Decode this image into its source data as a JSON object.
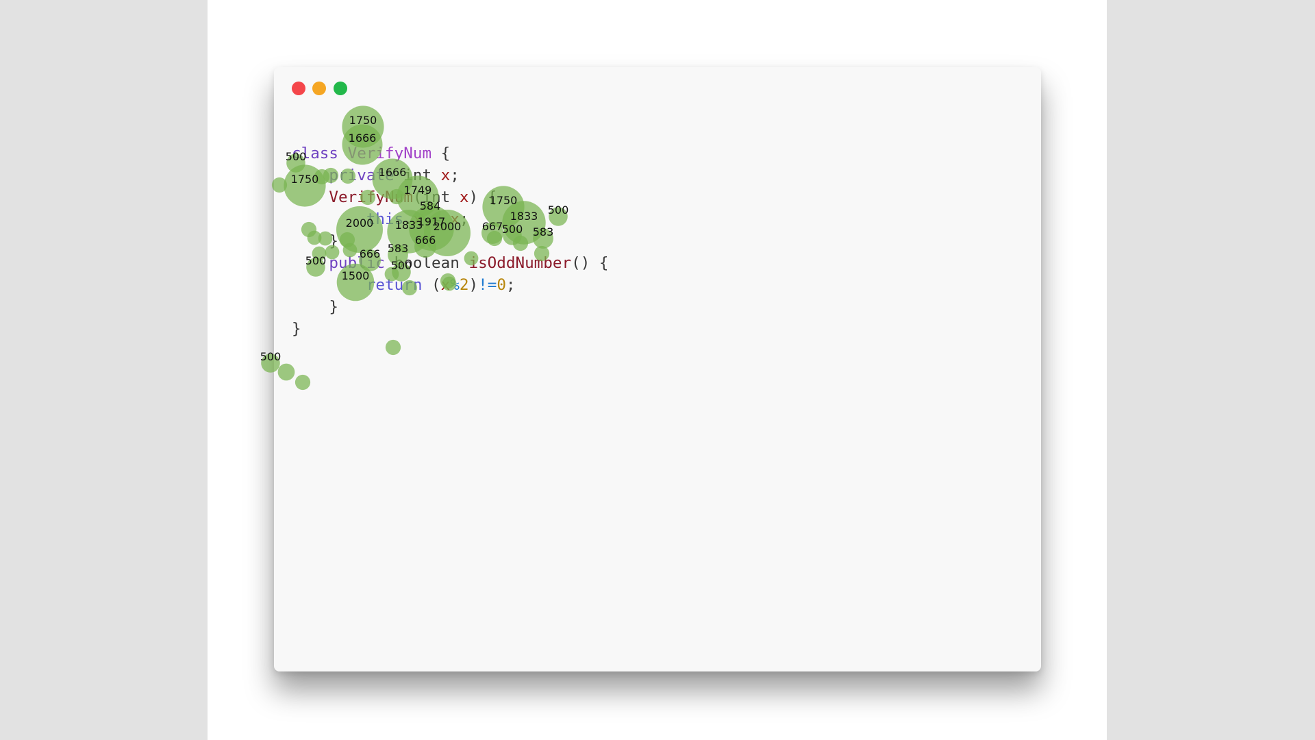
{
  "code": {
    "lines": [
      [
        {
          "t": "class ",
          "c": "kw"
        },
        {
          "t": "VerifyNum",
          "c": "cls"
        },
        {
          "t": " {",
          "c": "plain"
        }
      ],
      [
        {
          "t": "    ",
          "c": "plain"
        },
        {
          "t": "private ",
          "c": "kw"
        },
        {
          "t": "int ",
          "c": "plain"
        },
        {
          "t": "x",
          "c": "var"
        },
        {
          "t": ";",
          "c": "plain"
        }
      ],
      [
        {
          "t": "    ",
          "c": "plain"
        },
        {
          "t": "VerifyNum",
          "c": "fn"
        },
        {
          "t": "(int ",
          "c": "plain"
        },
        {
          "t": "x",
          "c": "var"
        },
        {
          "t": ") {",
          "c": "plain"
        }
      ],
      [
        {
          "t": "        ",
          "c": "plain"
        },
        {
          "t": "this",
          "c": "kw2"
        },
        {
          "t": ".",
          "c": "plain"
        },
        {
          "t": "x",
          "c": "var"
        },
        {
          "t": " = ",
          "c": "plain"
        },
        {
          "t": "x",
          "c": "var"
        },
        {
          "t": ";",
          "c": "plain"
        }
      ],
      [
        {
          "t": "    }",
          "c": "plain"
        }
      ],
      [
        {
          "t": "    ",
          "c": "plain"
        },
        {
          "t": "public ",
          "c": "kw"
        },
        {
          "t": "boolean ",
          "c": "plain"
        },
        {
          "t": "isOddNumber",
          "c": "fn"
        },
        {
          "t": "() {",
          "c": "plain"
        }
      ],
      [
        {
          "t": "        ",
          "c": "plain"
        },
        {
          "t": "return ",
          "c": "kw2"
        },
        {
          "t": "(",
          "c": "plain"
        },
        {
          "t": "x",
          "c": "var"
        },
        {
          "t": "%",
          "c": "op"
        },
        {
          "t": "2",
          "c": "num"
        },
        {
          "t": ")",
          "c": "plain"
        },
        {
          "t": "!=",
          "c": "op"
        },
        {
          "t": "0",
          "c": "num"
        },
        {
          "t": ";",
          "c": "plain"
        }
      ],
      [
        {
          "t": "    }",
          "c": "plain"
        }
      ],
      [
        {
          "t": "}",
          "c": "plain"
        }
      ]
    ]
  },
  "colors": {
    "bubble_fill": "#78b450",
    "window_bg": "#f8f8f8",
    "light_close": "#f4464a",
    "light_min": "#f5a623",
    "light_max": "#22b84a"
  },
  "gaze_points": [
    {
      "d": 1750,
      "label": "1750"
    },
    {
      "d": 1666,
      "label": "1666"
    },
    {
      "d": 500,
      "label": "500"
    },
    {
      "d": 1750,
      "label": "1750"
    },
    {
      "d": 1666,
      "label": "1666"
    },
    {
      "d": 1749,
      "label": "1749"
    },
    {
      "d": 1750,
      "label": "1750"
    },
    {
      "d": 500,
      "label": "500"
    },
    {
      "d": 584,
      "label": "584"
    },
    {
      "d": 1833,
      "label": "1833"
    },
    {
      "d": 2000,
      "label": "2000"
    },
    {
      "d": 1833,
      "label": "1833"
    },
    {
      "d": 1917,
      "label": "1917"
    },
    {
      "d": 2000,
      "label": "2000"
    },
    {
      "d": 667,
      "label": "667"
    },
    {
      "d": 500,
      "label": "500"
    },
    {
      "d": 583,
      "label": "583"
    },
    {
      "d": 666,
      "label": "666"
    },
    {
      "d": 583,
      "label": "583"
    },
    {
      "d": 666,
      "label": "666"
    },
    {
      "d": 500,
      "label": "500"
    },
    {
      "d": 500,
      "label": "500"
    },
    {
      "d": 1500,
      "label": "1500"
    },
    {
      "d": 500,
      "label": "500"
    },
    {
      "d": 300
    },
    {
      "d": 300
    },
    {
      "d": 250
    },
    {
      "d": 250
    },
    {
      "d": 300
    },
    {
      "d": 250
    },
    {
      "d": 250
    },
    {
      "d": 250
    },
    {
      "d": 250
    },
    {
      "d": 250
    },
    {
      "d": 300
    },
    {
      "d": 250
    },
    {
      "d": 300
    },
    {
      "d": 300
    },
    {
      "d": 400
    },
    {
      "d": 300
    },
    {
      "d": 300
    },
    {
      "d": 300
    },
    {
      "d": 300
    },
    {
      "d": 300
    },
    {
      "d": 300
    },
    {
      "d": 300
    },
    {
      "d": 300
    },
    {
      "d": 300
    }
  ]
}
